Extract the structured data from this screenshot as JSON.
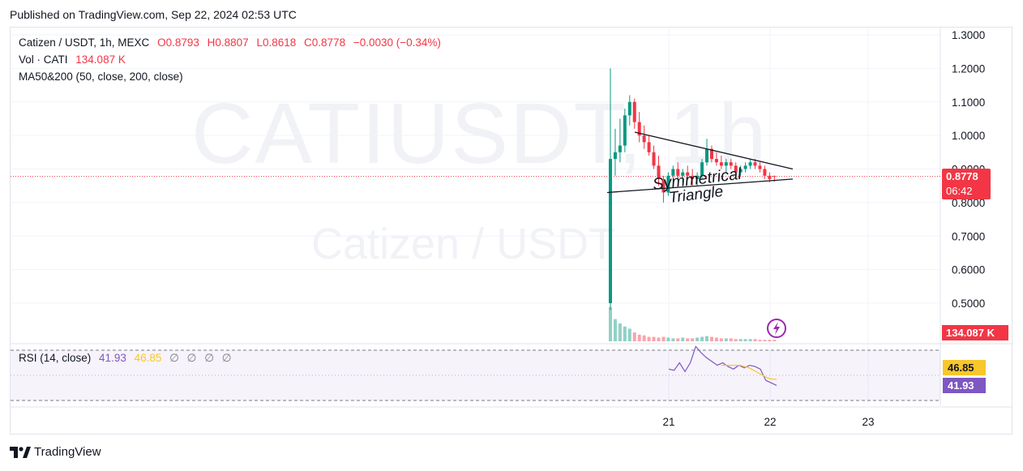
{
  "header": {
    "published": "Published on TradingView.com, Sep 22, 2024 02:53 UTC"
  },
  "legend": {
    "symbol": "Catizen / USDT, 1h, MEXC",
    "open": "O0.8793",
    "high": "H0.8807",
    "low": "L0.8618",
    "close": "C0.8778",
    "change": "−0.0030 (−0.34%)",
    "vol_label": "Vol · CATI",
    "vol_value": "134.087 K",
    "ma_label": "MA50&200 (50, close, 200, close)",
    "rsi_label": "RSI (14, close)",
    "rsi_value": "41.93",
    "rsi_ma_value": "46.85",
    "rsi_extra": "∅ ∅ ∅ ∅"
  },
  "watermark": {
    "symbol": "CATIUSDT, 1h",
    "description": "Catizen / USDT"
  },
  "price_tag": {
    "price": "0.8778",
    "countdown": "06:42"
  },
  "volume_tag": "134.087 K",
  "rsi_tags": {
    "rsi": "41.93",
    "rsi_ma": "46.85"
  },
  "annotation": {
    "line1": "Symmetrical",
    "line2": "Triangle"
  },
  "footer": {
    "brand": "TradingView"
  },
  "colors": {
    "up": "#089981",
    "down": "#f23645",
    "rsi": "#7e57c2",
    "rsi_ma": "#f7c72c",
    "accent_purple": "#9c27b0"
  },
  "chart_data": {
    "type": "candlestick",
    "title": "Catizen / USDT, 1h, MEXC",
    "y_axis_ticks": [
      "1.3000",
      "1.2000",
      "1.1000",
      "1.0000",
      "0.9000",
      "0.8000",
      "0.7000",
      "0.6000",
      "0.5000"
    ],
    "y_axis_tick_values": [
      1.3,
      1.2,
      1.1,
      1.0,
      0.9,
      0.8,
      0.7,
      0.6,
      0.5
    ],
    "ylim": [
      0.43,
      1.33
    ],
    "x_axis_ticks": [
      "21",
      "22",
      "23"
    ],
    "last_price": 0.8778,
    "ohlc": [
      [
        0.5,
        1.2,
        0.48,
        0.93
      ],
      [
        0.93,
        1.02,
        0.88,
        0.95
      ],
      [
        0.95,
        1.05,
        0.92,
        0.97
      ],
      [
        0.97,
        1.08,
        0.95,
        1.06
      ],
      [
        1.06,
        1.12,
        1.03,
        1.1
      ],
      [
        1.1,
        1.11,
        1.02,
        1.04
      ],
      [
        1.04,
        1.07,
        0.98,
        1.0
      ],
      [
        1.0,
        1.03,
        0.96,
        0.98
      ],
      [
        0.98,
        1.0,
        0.94,
        0.95
      ],
      [
        0.95,
        0.97,
        0.9,
        0.91
      ],
      [
        0.91,
        0.94,
        0.85,
        0.87
      ],
      [
        0.87,
        0.88,
        0.8,
        0.83
      ],
      [
        0.83,
        0.89,
        0.82,
        0.88
      ],
      [
        0.88,
        0.91,
        0.86,
        0.9
      ],
      [
        0.9,
        0.92,
        0.87,
        0.88
      ],
      [
        0.88,
        0.9,
        0.86,
        0.89
      ],
      [
        0.89,
        0.91,
        0.87,
        0.88
      ],
      [
        0.88,
        0.9,
        0.85,
        0.87
      ],
      [
        0.87,
        0.89,
        0.85,
        0.88
      ],
      [
        0.88,
        0.93,
        0.87,
        0.92
      ],
      [
        0.92,
        0.99,
        0.91,
        0.96
      ],
      [
        0.96,
        0.97,
        0.92,
        0.93
      ],
      [
        0.93,
        0.95,
        0.91,
        0.92
      ],
      [
        0.92,
        0.94,
        0.9,
        0.91
      ],
      [
        0.91,
        0.93,
        0.89,
        0.92
      ],
      [
        0.92,
        0.93,
        0.9,
        0.91
      ],
      [
        0.91,
        0.92,
        0.88,
        0.89
      ],
      [
        0.89,
        0.91,
        0.88,
        0.9
      ],
      [
        0.9,
        0.92,
        0.89,
        0.91
      ],
      [
        0.91,
        0.93,
        0.9,
        0.92
      ],
      [
        0.92,
        0.93,
        0.9,
        0.91
      ],
      [
        0.91,
        0.92,
        0.89,
        0.9
      ],
      [
        0.9,
        0.91,
        0.87,
        0.88
      ],
      [
        0.88,
        0.89,
        0.86,
        0.87
      ],
      [
        0.8793,
        0.8807,
        0.8618,
        0.8778
      ]
    ],
    "volume": [
      46,
      30,
      24,
      20,
      17,
      12,
      9,
      8,
      6,
      6,
      5,
      6,
      5,
      4,
      4,
      5,
      4,
      4,
      5,
      6,
      7,
      6,
      5,
      4,
      4,
      4,
      3,
      3,
      3,
      3,
      3,
      2,
      2,
      2,
      2
    ],
    "rsi": [
      55,
      54,
      60,
      53,
      60,
      73,
      68,
      64,
      61,
      58,
      60,
      57,
      55,
      58,
      56,
      58,
      57,
      55,
      46,
      44,
      42
    ],
    "rsi_ma": [
      58,
      58,
      58,
      58,
      58,
      57,
      56,
      54,
      52,
      50,
      48,
      47,
      46.85
    ],
    "rsi_levels": [
      70,
      30
    ],
    "pattern": {
      "name": "Symmetrical Triangle",
      "upper_line": [
        [
          0.75,
          1.01
        ],
        [
          1.12,
          0.9
        ]
      ],
      "lower_line": [
        [
          0.75,
          0.83
        ],
        [
          1.12,
          0.87
        ]
      ]
    }
  }
}
